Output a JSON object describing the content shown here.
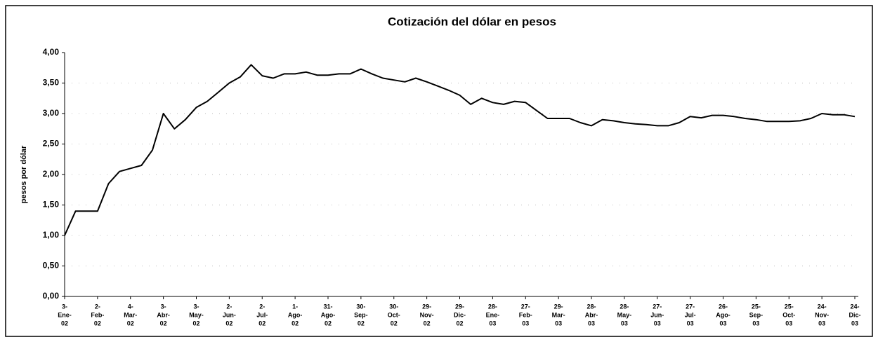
{
  "chart_data": {
    "type": "line",
    "title": "Cotización del dólar en pesos",
    "y_label": "pesos por dólar",
    "categories": [
      [
        "3-",
        "Ene-",
        "02"
      ],
      null,
      null,
      [
        "2-",
        "Feb-",
        "02"
      ],
      null,
      null,
      [
        "4-",
        "Mar-",
        "02"
      ],
      null,
      null,
      [
        "3-",
        "Abr-",
        "02"
      ],
      null,
      null,
      [
        "3-",
        "May-",
        "02"
      ],
      null,
      null,
      [
        "2-",
        "Jun-",
        "02"
      ],
      null,
      null,
      [
        "2-",
        "Jul-",
        "02"
      ],
      null,
      null,
      [
        "1-",
        "Ago-",
        "02"
      ],
      null,
      null,
      [
        "31-",
        "Ago-",
        "02"
      ],
      null,
      null,
      [
        "30-",
        "Sep-",
        "02"
      ],
      null,
      null,
      [
        "30-",
        "Oct-",
        "02"
      ],
      null,
      null,
      [
        "29-",
        "Nov-",
        "02"
      ],
      null,
      null,
      [
        "29-",
        "Dic-",
        "02"
      ],
      null,
      null,
      [
        "28-",
        "Ene-",
        "03"
      ],
      null,
      null,
      [
        "27-",
        "Feb-",
        "03"
      ],
      null,
      null,
      [
        "29-",
        "Mar-",
        "03"
      ],
      null,
      null,
      [
        "28-",
        "Abr-",
        "03"
      ],
      null,
      null,
      [
        "28-",
        "May-",
        "03"
      ],
      null,
      null,
      [
        "27-",
        "Jun-",
        "03"
      ],
      null,
      null,
      [
        "27-",
        "Jul-",
        "03"
      ],
      null,
      null,
      [
        "26-",
        "Ago-",
        "03"
      ],
      null,
      null,
      [
        "25-",
        "Sep-",
        "03"
      ],
      null,
      null,
      [
        "25-",
        "Oct-",
        "03"
      ],
      null,
      null,
      [
        "24-",
        "Nov-",
        "03"
      ],
      null,
      null,
      [
        "24-",
        "Dic-",
        "03"
      ]
    ],
    "series": [
      {
        "color": "#000000",
        "values": [
          1.0,
          1.4,
          1.4,
          1.4,
          1.85,
          2.05,
          2.1,
          2.15,
          2.4,
          3.0,
          2.75,
          2.9,
          3.1,
          3.2,
          3.35,
          3.5,
          3.6,
          3.8,
          3.62,
          3.58,
          3.65,
          3.65,
          3.68,
          3.63,
          3.63,
          3.65,
          3.65,
          3.73,
          3.65,
          3.58,
          3.55,
          3.52,
          3.58,
          3.52,
          3.45,
          3.38,
          3.3,
          3.15,
          3.25,
          3.18,
          3.15,
          3.2,
          3.18,
          3.05,
          2.92,
          2.92,
          2.92,
          2.85,
          2.8,
          2.9,
          2.88,
          2.85,
          2.83,
          2.82,
          2.8,
          2.8,
          2.85,
          2.95,
          2.93,
          2.97,
          2.97,
          2.95,
          2.92,
          2.9,
          2.87,
          2.87,
          2.87,
          2.88,
          2.92,
          3.0,
          2.98,
          2.98,
          2.95
        ]
      }
    ],
    "ylim": [
      0,
      4
    ],
    "yticks": [
      {
        "value": 0,
        "label": "0,00"
      },
      {
        "value": 0.5,
        "label": "0,50"
      },
      {
        "value": 1,
        "label": "1,00"
      },
      {
        "value": 1.5,
        "label": "1,50"
      },
      {
        "value": 2,
        "label": "2,00"
      },
      {
        "value": 2.5,
        "label": "2,50"
      },
      {
        "value": 3,
        "label": "3,00"
      },
      {
        "value": 3.5,
        "label": "3,50"
      },
      {
        "value": 4,
        "label": "4,00"
      }
    ],
    "grid": true
  }
}
